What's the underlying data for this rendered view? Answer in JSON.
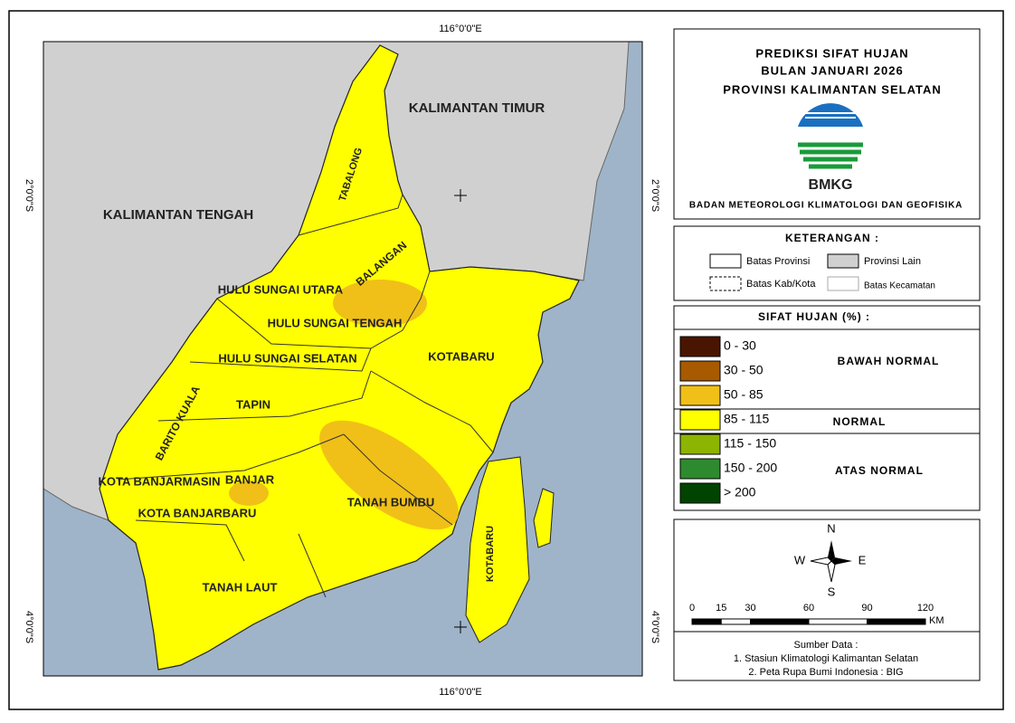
{
  "map": {
    "graticule": {
      "lon_top": "116°0'0\"E",
      "lon_bottom": "116°0'0\"E",
      "lat_2_left": "2°0'0\"S",
      "lat_2_right": "2°0'0\"S",
      "lat_4_left": "4°0'0\"S",
      "lat_4_right": "4°0'0\"S"
    },
    "neighbors": [
      "KALIMANTAN TIMUR",
      "KALIMANTAN TENGAH"
    ],
    "districts": [
      "TABALONG",
      "BALANGAN",
      "HULU SUNGAI UTARA",
      "HULU SUNGAI TENGAH",
      "HULU SUNGAI SELATAN",
      "KOTABARU",
      "TAPIN",
      "BARITO KUALA",
      "KOTA BANJARMASIN",
      "BANJAR",
      "KOTA BANJARBARU",
      "TANAH BUMBU",
      "TANAH LAUT",
      "KOTABARU"
    ]
  },
  "header": {
    "title": [
      "PREDIKSI SIFAT HUJAN",
      "BULAN JANUARI 2026",
      "PROVINSI KALIMANTAN SELATAN"
    ],
    "logo": "BMKG",
    "agency": "BADAN METEOROLOGI KLIMATOLOGI DAN GEOFISIKA"
  },
  "keterangan": {
    "title": "KETERANGAN :",
    "items": [
      "Batas Provinsi",
      "Provinsi Lain",
      "Batas Kab/Kota",
      "Batas Kecamatan"
    ]
  },
  "sifat_hujan": {
    "title": "SIFAT HUJAN (%) :",
    "classes": [
      {
        "range": "0 - 30",
        "color": "#4a1500"
      },
      {
        "range": "30 - 50",
        "color": "#a85a00"
      },
      {
        "range": "50 - 85",
        "color": "#f0c018"
      },
      {
        "range": "85 - 115",
        "color": "#ffff00"
      },
      {
        "range": "115 - 150",
        "color": "#8cb400"
      },
      {
        "range": "150 - 200",
        "color": "#2e8a2e"
      },
      {
        "range": "> 200",
        "color": "#004400"
      }
    ],
    "groups": [
      "BAWAH NORMAL",
      "NORMAL",
      "ATAS NORMAL"
    ]
  },
  "compass": {
    "n": "N",
    "s": "S",
    "e": "E",
    "w": "W"
  },
  "scale": {
    "ticks": [
      0,
      15,
      30,
      60,
      90,
      120
    ],
    "unit": "KM"
  },
  "source": {
    "title": "Sumber Data :",
    "items": [
      "1. Stasiun Klimatologi Kalimantan Selatan",
      "2. Peta Rupa Bumi Indonesia : BIG"
    ]
  }
}
